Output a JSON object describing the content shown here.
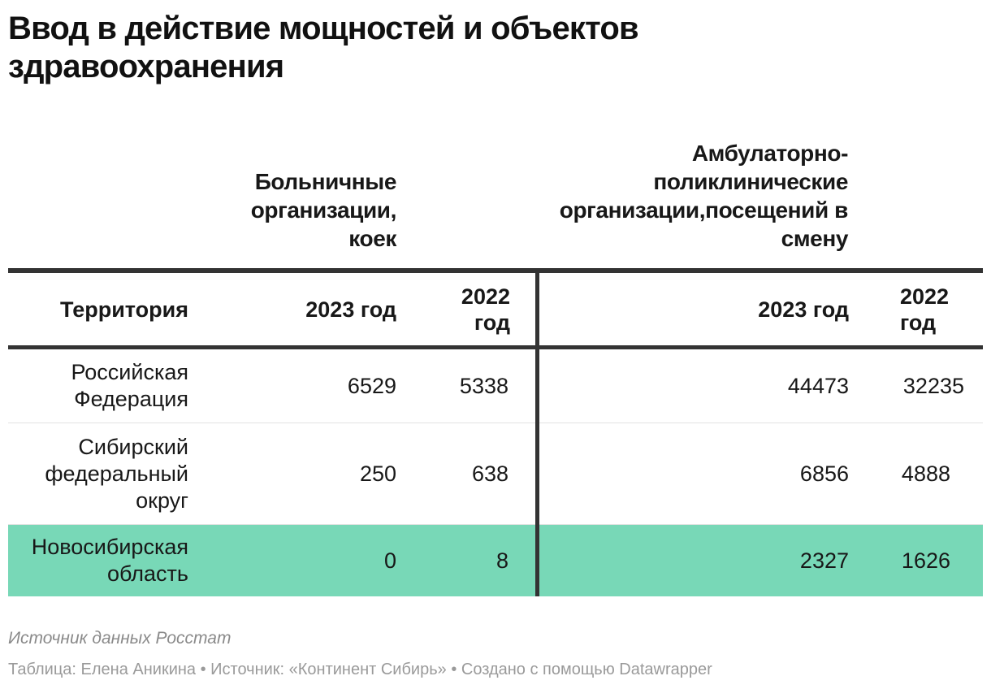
{
  "title": "Ввод в действие мощностей и объектов здравоохранения",
  "chart_data": {
    "type": "table",
    "column_groups": [
      {
        "label": "Больничные организации, коек",
        "columns": [
          "2023 год",
          "2022 год"
        ]
      },
      {
        "label": "Амбулаторно-поликлинические организации,посещений в смену",
        "columns": [
          "2023 год",
          "2022 год"
        ]
      }
    ],
    "header": {
      "territory": "Территория",
      "hosp_2023": "2023 год",
      "hosp_2022": "2022 год",
      "amb_2023": "2023 год",
      "amb_2022": "2022 год"
    },
    "rows": [
      {
        "territory": "Российская Федерация",
        "hosp_2023": "6529",
        "hosp_2022": "5338",
        "amb_2023": "44473",
        "amb_2022": "32235"
      },
      {
        "territory": "Сибирский федеральный округ",
        "hosp_2023": "250",
        "hosp_2022": "638",
        "amb_2023": "6856",
        "amb_2022": "4888"
      },
      {
        "territory": "Новосибирская область",
        "hosp_2023": "0",
        "hosp_2022": "8",
        "amb_2023": "2327",
        "amb_2022": "1626"
      }
    ],
    "highlighted_row": 2,
    "highlight_color": "#78d8b7"
  },
  "notes": "Источник данных Росстат",
  "byline": "Таблица: Елена Аникина • Источник: «Континент Сибирь» • Создано с помощью Datawrapper"
}
